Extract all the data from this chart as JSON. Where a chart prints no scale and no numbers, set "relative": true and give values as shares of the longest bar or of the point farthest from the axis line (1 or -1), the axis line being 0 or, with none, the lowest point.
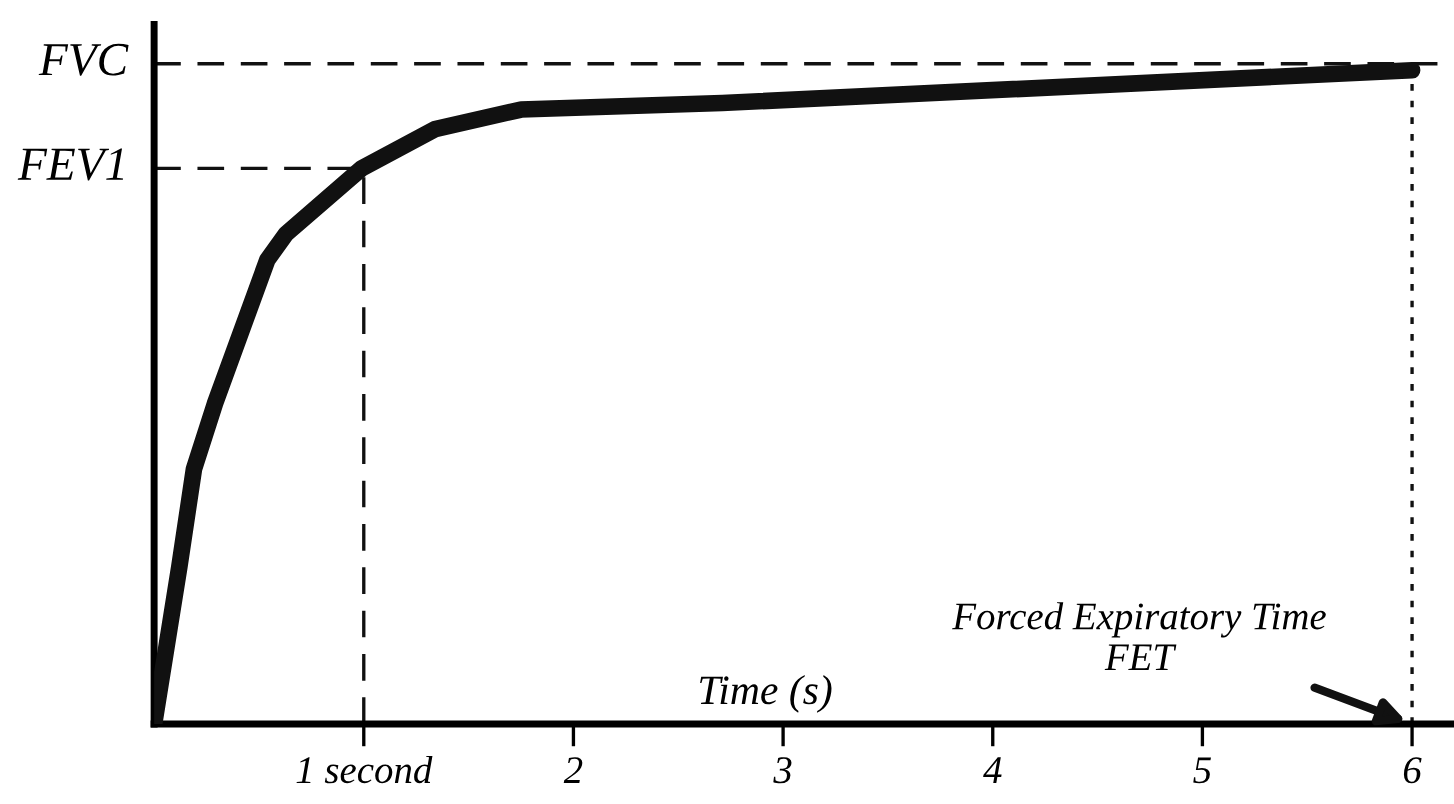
{
  "chart_data": {
    "type": "line",
    "relative": true,
    "xlabel": "Time (s)",
    "x": [
      0,
      0.12,
      0.19,
      0.29,
      0.54,
      0.63,
      0.99,
      1.34,
      1.75,
      2.71,
      6
    ],
    "series": [
      {
        "color": "#111111",
        "values": [
          0,
          0.24,
          0.39,
          0.49,
          0.71,
          0.75,
          0.85,
          0.91,
          0.94,
          0.95,
          1.0
        ]
      }
    ],
    "xlim": [
      0,
      6.2
    ],
    "xticks": [
      {
        "value": 1,
        "label": "1 second"
      },
      2,
      3,
      4,
      5,
      6
    ],
    "ref_lines": [
      {
        "axis": "y",
        "value": 1.01,
        "label": "FVC",
        "line_style": "dashed",
        "color": "#111111"
      },
      {
        "axis": "y",
        "value": 0.85,
        "label": "FEV1",
        "line_style": "dashed",
        "color": "#111111"
      },
      {
        "axis": "x",
        "value": 1,
        "line_style": "dashed",
        "color": "#111111"
      },
      {
        "axis": "x",
        "value": 6,
        "line_style": "dotted",
        "color": "#111111"
      }
    ],
    "annotations": [
      {
        "text": "Forced Expiratory Time\nFET",
        "x": 6,
        "y": 0
      }
    ],
    "grid": false,
    "legend": false
  }
}
